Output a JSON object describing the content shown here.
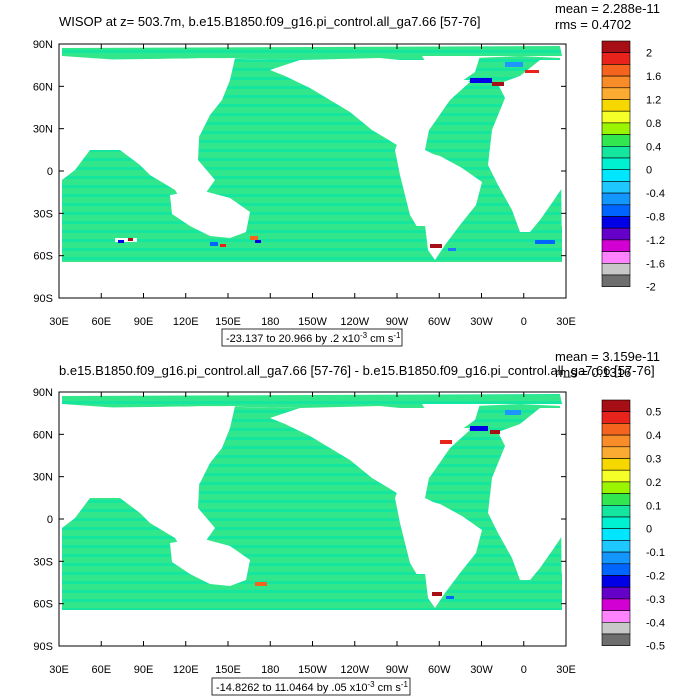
{
  "chart_data": [
    {
      "type": "heatmap",
      "title": "WISOP at z= 503.7m, b.e15.B1850.f09_g16.pi_control.all_ga7.66 [57-76]",
      "stats": {
        "mean": "mean = 2.288e-11",
        "rms": "rms = 0.4702"
      },
      "range_label_prefix": "-23.137 to 20.966 by .2 x10",
      "range_label_exp": "-3",
      "range_label_suffix": " cm s",
      "range_label_exp2": "-1",
      "xticks": [
        "30E",
        "60E",
        "90E",
        "120E",
        "150E",
        "180",
        "150W",
        "120W",
        "90W",
        "60W",
        "30W",
        "0",
        "30E"
      ],
      "yticks": [
        "90N",
        "60N",
        "30N",
        "0",
        "30S",
        "60S",
        "90S"
      ],
      "colorbar_levels": [
        "2",
        "1.6",
        "1.2",
        "0.8",
        "0.4",
        "0",
        "-0.4",
        "-0.8",
        "-1.2",
        "-1.6",
        "-2"
      ]
    },
    {
      "type": "heatmap",
      "title": "b.e15.B1850.f09_g16.pi_control.all_ga7.66 [57-76] - b.e15.B1850.f09_g16.pi_control.all_ga7.66 [57-76]",
      "stats": {
        "mean": "mean = 3.159e-11",
        "rms": "rms = 0.1316"
      },
      "range_label_prefix": "-14.8262 to 11.0464 by .05 x10",
      "range_label_exp": "-3",
      "range_label_suffix": " cm s",
      "range_label_exp2": "-1",
      "xticks": [
        "30E",
        "60E",
        "90E",
        "120E",
        "150E",
        "180",
        "150W",
        "120W",
        "90W",
        "60W",
        "30W",
        "0",
        "30E"
      ],
      "yticks": [
        "90N",
        "60N",
        "30N",
        "0",
        "30S",
        "60S",
        "90S"
      ],
      "colorbar_levels": [
        "0.5",
        "0.4",
        "0.3",
        "0.2",
        "0.1",
        "0",
        "-0.1",
        "-0.2",
        "-0.3",
        "-0.4",
        "-0.5"
      ]
    }
  ],
  "colors": {
    "ocean_base": "#32e68c",
    "ocean_alt": "#00e6c8",
    "land": "#ffffff",
    "colorbar": [
      "#a50f15",
      "#e8231c",
      "#f5641e",
      "#f78c28",
      "#fbaa32",
      "#f7d700",
      "#f5ff28",
      "#9bf500",
      "#32e650",
      "#14e6a0",
      "#00f0d2",
      "#00e6ff",
      "#1ec8ff",
      "#1496ff",
      "#0064ff",
      "#0000e6",
      "#6400c8",
      "#d200d2",
      "#ff82ff",
      "#c8c8c8",
      "#6e6e6e"
    ]
  }
}
